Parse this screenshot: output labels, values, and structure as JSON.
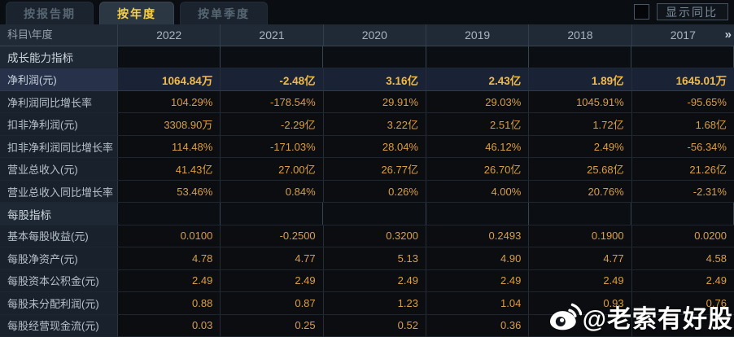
{
  "tabs": [
    {
      "label": "按报告期",
      "active": false
    },
    {
      "label": "按年度",
      "active": true
    },
    {
      "label": "按单季度",
      "active": false
    }
  ],
  "controls": {
    "show_yoy_label": "显示同比",
    "checkbox_checked": false
  },
  "table": {
    "corner_label": "科目\\年度",
    "years": [
      "2022",
      "2021",
      "2020",
      "2019",
      "2018",
      "2017"
    ],
    "more_icon": "»",
    "rows": [
      {
        "type": "section",
        "label": "成长能力指标"
      },
      {
        "type": "data",
        "highlight": true,
        "label": "净利润(元)",
        "values": [
          "1064.84万",
          "-2.48亿",
          "3.16亿",
          "2.43亿",
          "1.89亿",
          "1645.01万"
        ]
      },
      {
        "type": "data",
        "label": "净利润同比增长率",
        "values": [
          "104.29%",
          "-178.54%",
          "29.91%",
          "29.03%",
          "1045.91%",
          "-95.65%"
        ]
      },
      {
        "type": "data",
        "label": "扣非净利润(元)",
        "values": [
          "3308.90万",
          "-2.29亿",
          "3.22亿",
          "2.51亿",
          "1.72亿",
          "1.68亿"
        ]
      },
      {
        "type": "data",
        "label": "扣非净利润同比增长率",
        "values": [
          "114.48%",
          "-171.03%",
          "28.04%",
          "46.12%",
          "2.49%",
          "-56.34%"
        ]
      },
      {
        "type": "data",
        "label": "营业总收入(元)",
        "values": [
          "41.43亿",
          "27.00亿",
          "26.77亿",
          "26.70亿",
          "25.68亿",
          "21.26亿"
        ]
      },
      {
        "type": "data",
        "label": "营业总收入同比增长率",
        "values": [
          "53.46%",
          "0.84%",
          "0.26%",
          "4.00%",
          "20.76%",
          "-2.31%"
        ]
      },
      {
        "type": "section",
        "label": "每股指标"
      },
      {
        "type": "data",
        "label": "基本每股收益(元)",
        "values": [
          "0.0100",
          "-0.2500",
          "0.3200",
          "0.2493",
          "0.1900",
          "0.0200"
        ]
      },
      {
        "type": "data",
        "label": "每股净资产(元)",
        "values": [
          "4.78",
          "4.77",
          "5.13",
          "4.90",
          "4.77",
          "4.58"
        ]
      },
      {
        "type": "data",
        "label": "每股资本公积金(元)",
        "values": [
          "2.49",
          "2.49",
          "2.49",
          "2.49",
          "2.49",
          "2.49"
        ]
      },
      {
        "type": "data",
        "label": "每股未分配利润(元)",
        "values": [
          "0.88",
          "0.87",
          "1.23",
          "1.04",
          "0.93",
          "0.76"
        ]
      },
      {
        "type": "data",
        "label": "每股经营现金流(元)",
        "values": [
          "0.03",
          "0.25",
          "0.52",
          "0.36",
          "",
          ""
        ]
      }
    ]
  },
  "watermark": {
    "icon": "weibo-logo",
    "text": "@老索有好股"
  },
  "colors": {
    "value_gold": "#db9f46",
    "highlight_value_gold": "#f2ba49",
    "tab_active_text": "#f8d04a",
    "header_bg": "#202a36",
    "highlight_row_bg": "#1a2336",
    "watermark_text": "#ffffff"
  }
}
